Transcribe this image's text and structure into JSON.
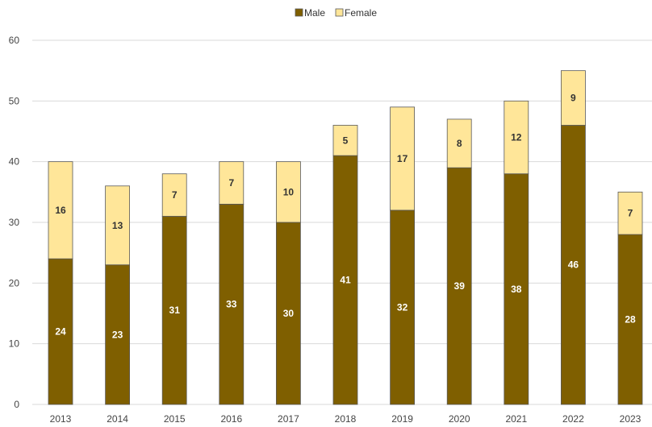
{
  "chart_data": {
    "type": "bar",
    "stacked": true,
    "categories": [
      "2013",
      "2014",
      "2015",
      "2016",
      "2017",
      "2018",
      "2019",
      "2020",
      "2021",
      "2022",
      "2023"
    ],
    "series": [
      {
        "name": "Male",
        "color": "#7f5f00",
        "label_color": "#ffffff",
        "values": [
          24,
          23,
          31,
          33,
          30,
          41,
          32,
          39,
          38,
          46,
          28
        ]
      },
      {
        "name": "Female",
        "color": "#ffe699",
        "label_color": "#333333",
        "values": [
          16,
          13,
          7,
          7,
          10,
          5,
          17,
          8,
          12,
          9,
          7
        ]
      }
    ],
    "ylim": [
      0,
      60
    ],
    "yticks": [
      "0",
      "10",
      "20",
      "30",
      "40",
      "50",
      "60"
    ],
    "grid": true,
    "legend_position": "top-center",
    "title": "",
    "xlabel": "",
    "ylabel": ""
  },
  "colors": {
    "grid": "#d9d9d9",
    "bar_outline": "#595959"
  }
}
